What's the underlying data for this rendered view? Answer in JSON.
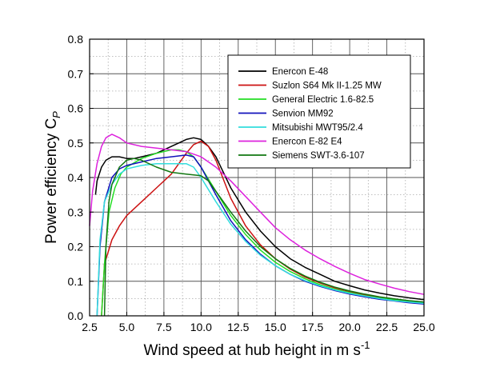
{
  "chart_data": {
    "type": "line",
    "title": "",
    "xlabel": "Wind speed at hub height in m s",
    "xlabel_sup": "-1",
    "ylabel": "Power efficiency C",
    "ylabel_sub": "P",
    "xlim": [
      2.5,
      25.0
    ],
    "ylim": [
      0.0,
      0.8
    ],
    "x_ticks": [
      "2.5",
      "5.0",
      "7.5",
      "10.0",
      "12.5",
      "15.0",
      "17.5",
      "20.0",
      "22.5",
      "25.0"
    ],
    "y_ticks": [
      "0.0",
      "0.1",
      "0.2",
      "0.3",
      "0.4",
      "0.5",
      "0.6",
      "0.7",
      "0.8"
    ],
    "grid": true,
    "legend_position": "top-right",
    "series": [
      {
        "name": "Enercon E-48",
        "color": "#000000",
        "x": [
          2.9,
          3.0,
          3.3,
          3.6,
          4.0,
          4.5,
          5.0,
          5.5,
          6.0,
          7.0,
          8.0,
          8.5,
          9.0,
          9.5,
          10.0,
          10.5,
          11.0,
          12.0,
          13.0,
          14.0,
          15.0,
          16.0,
          17.0,
          18.0,
          19.0,
          20.0,
          21.0,
          22.0,
          23.0,
          24.0,
          25.0
        ],
        "y": [
          0.35,
          0.39,
          0.43,
          0.45,
          0.46,
          0.46,
          0.455,
          0.455,
          0.46,
          0.47,
          0.49,
          0.5,
          0.51,
          0.515,
          0.51,
          0.49,
          0.46,
          0.37,
          0.3,
          0.245,
          0.2,
          0.165,
          0.14,
          0.12,
          0.1,
          0.087,
          0.075,
          0.066,
          0.058,
          0.052,
          0.047
        ]
      },
      {
        "name": "Suzlon S64 Mk II-1.25 MW",
        "color": "#cc1111",
        "x": [
          3.3,
          3.5,
          4.0,
          4.5,
          5.0,
          5.5,
          6.0,
          7.0,
          8.0,
          9.0,
          9.5,
          10.0,
          10.5,
          11.0,
          12.0,
          13.0,
          14.0,
          15.0,
          16.0,
          17.0,
          18.0,
          19.0,
          20.0,
          21.0,
          22.0,
          23.0,
          24.0,
          25.0
        ],
        "y": [
          0.0,
          0.15,
          0.22,
          0.26,
          0.29,
          0.31,
          0.33,
          0.37,
          0.41,
          0.47,
          0.495,
          0.505,
          0.49,
          0.45,
          0.34,
          0.26,
          0.205,
          0.165,
          0.135,
          0.112,
          0.095,
          0.081,
          0.07,
          0.061,
          0.054,
          0.048,
          0.043,
          0.04
        ]
      },
      {
        "name": "General Electric 1.6-82.5",
        "color": "#22dd22",
        "x": [
          3.3,
          3.5,
          3.8,
          4.2,
          4.6,
          5.0,
          6.0,
          7.0,
          8.0,
          8.5,
          9.0,
          9.5,
          10.0,
          11.0,
          12.0,
          13.0,
          14.0,
          15.0,
          16.0,
          17.0,
          18.0,
          19.0,
          20.0,
          21.0,
          22.0,
          23.0,
          24.0,
          25.0
        ],
        "y": [
          0.0,
          0.15,
          0.3,
          0.37,
          0.41,
          0.43,
          0.455,
          0.47,
          0.48,
          0.48,
          0.475,
          0.46,
          0.43,
          0.36,
          0.29,
          0.235,
          0.19,
          0.155,
          0.128,
          0.107,
          0.09,
          0.077,
          0.067,
          0.058,
          0.051,
          0.046,
          0.041,
          0.037
        ]
      },
      {
        "name": "Senvion MM92",
        "color": "#1111bb",
        "x": [
          3.0,
          3.2,
          3.5,
          4.0,
          4.5,
          5.0,
          6.0,
          7.0,
          8.0,
          9.0,
          9.5,
          10.0,
          11.0,
          12.0,
          13.0,
          14.0,
          15.0,
          16.0,
          17.0,
          18.0,
          19.0,
          20.0,
          21.0,
          22.0,
          23.0,
          24.0,
          25.0
        ],
        "y": [
          0.0,
          0.2,
          0.33,
          0.4,
          0.425,
          0.435,
          0.445,
          0.455,
          0.46,
          0.465,
          0.46,
          0.43,
          0.35,
          0.275,
          0.22,
          0.178,
          0.145,
          0.12,
          0.1,
          0.085,
          0.073,
          0.063,
          0.055,
          0.048,
          0.043,
          0.038,
          0.034
        ]
      },
      {
        "name": "Mitsubishi MWT95/2.4",
        "color": "#33dddd",
        "x": [
          3.0,
          3.2,
          3.5,
          4.0,
          4.5,
          5.0,
          6.0,
          7.0,
          8.0,
          9.0,
          9.5,
          10.0,
          11.0,
          12.0,
          13.0,
          14.0,
          15.0,
          16.0,
          17.0,
          18.0,
          19.0,
          20.0,
          21.0,
          22.0,
          23.0,
          24.0,
          25.0
        ],
        "y": [
          0.0,
          0.22,
          0.33,
          0.38,
          0.41,
          0.425,
          0.435,
          0.44,
          0.44,
          0.44,
          0.43,
          0.4,
          0.33,
          0.265,
          0.215,
          0.175,
          0.145,
          0.12,
          0.102,
          0.087,
          0.075,
          0.065,
          0.057,
          0.05,
          0.044,
          0.04,
          0.036
        ]
      },
      {
        "name": "Enercon E-82 E4",
        "color": "#dd22dd",
        "x": [
          2.5,
          2.7,
          3.0,
          3.3,
          3.6,
          4.0,
          4.5,
          5.0,
          6.0,
          7.0,
          8.0,
          9.0,
          10.0,
          11.0,
          12.0,
          13.0,
          14.0,
          15.0,
          16.0,
          17.0,
          18.0,
          19.0,
          20.0,
          21.0,
          22.0,
          23.0,
          24.0,
          25.0
        ],
        "y": [
          0.26,
          0.36,
          0.44,
          0.49,
          0.515,
          0.525,
          0.515,
          0.5,
          0.49,
          0.485,
          0.48,
          0.475,
          0.46,
          0.43,
          0.39,
          0.345,
          0.3,
          0.255,
          0.22,
          0.19,
          0.165,
          0.143,
          0.123,
          0.105,
          0.092,
          0.08,
          0.07,
          0.062
        ]
      },
      {
        "name": "Siemens SWT-3.6-107",
        "color": "#117711",
        "x": [
          3.5,
          3.6,
          3.8,
          4.0,
          4.5,
          5.0,
          5.5,
          6.0,
          7.0,
          8.0,
          9.0,
          10.0,
          10.5,
          11.0,
          12.0,
          13.0,
          14.0,
          15.0,
          16.0,
          17.0,
          18.0,
          19.0,
          20.0,
          21.0,
          22.0,
          23.0,
          24.0,
          25.0
        ],
        "y": [
          0.0,
          0.2,
          0.33,
          0.38,
          0.43,
          0.45,
          0.455,
          0.45,
          0.43,
          0.415,
          0.41,
          0.405,
          0.39,
          0.36,
          0.3,
          0.245,
          0.2,
          0.165,
          0.137,
          0.115,
          0.097,
          0.083,
          0.072,
          0.063,
          0.055,
          0.049,
          0.044,
          0.04
        ]
      }
    ]
  }
}
